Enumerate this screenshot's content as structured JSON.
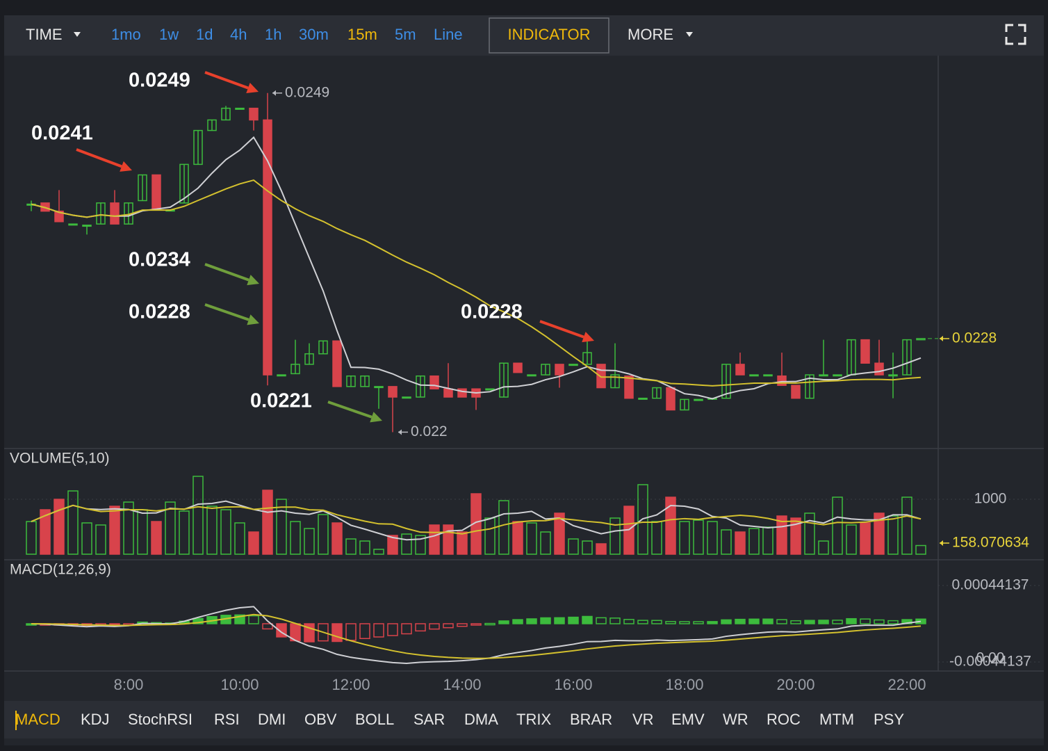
{
  "toolbar": {
    "time": "TIME",
    "intervals": [
      {
        "label": "1mo",
        "color": "#3e8ee6"
      },
      {
        "label": "1w",
        "color": "#3e8ee6"
      },
      {
        "label": "1d",
        "color": "#3e8ee6"
      },
      {
        "label": "4h",
        "color": "#3e8ee6"
      },
      {
        "label": "1h",
        "color": "#3e8ee6"
      },
      {
        "label": "30m",
        "color": "#3e8ee6"
      },
      {
        "label": "15m",
        "color": "#f0b90b"
      },
      {
        "label": "5m",
        "color": "#3e8ee6"
      },
      {
        "label": "Line",
        "color": "#3e8ee6"
      }
    ],
    "indicator": "INDICATOR",
    "more": "MORE"
  },
  "chart": {
    "type": "candlestick",
    "ylim": [
      0.02186,
      0.02522
    ],
    "up_color": "#3dbb3d",
    "down_color": "#d8434b",
    "candles": {
      "open": [
        0.02395,
        0.02396,
        0.02389,
        0.02378,
        0.02377,
        0.02378,
        0.02396,
        0.02378,
        0.02398,
        0.0242,
        0.0239,
        0.02396,
        0.02429,
        0.02458,
        0.02467,
        0.02477,
        0.02477,
        0.02467,
        0.02249,
        0.0225,
        0.02258,
        0.02267,
        0.02278,
        0.02239,
        0.02239,
        0.02239,
        0.02239,
        0.0223,
        0.0223,
        0.02248,
        0.02237,
        0.02237,
        0.02237,
        0.02237,
        0.0223,
        0.02259,
        0.02249,
        0.02249,
        0.02258,
        0.02258,
        0.02258,
        0.02258,
        0.02238,
        0.02248,
        0.02229,
        0.02229,
        0.02238,
        0.02219,
        0.02228,
        0.02229,
        0.02229,
        0.02258,
        0.02249,
        0.02249,
        0.02248,
        0.0224,
        0.02229,
        0.02249,
        0.02249,
        0.02249,
        0.02279,
        0.02259,
        0.02249,
        0.02249,
        0.02279
      ],
      "high": [
        0.02398,
        0.02396,
        0.02407,
        0.02378,
        0.02377,
        0.02396,
        0.02407,
        0.02396,
        0.0242,
        0.0242,
        0.0239,
        0.02429,
        0.02458,
        0.02467,
        0.02479,
        0.02477,
        0.02477,
        0.0249,
        0.02249,
        0.02279,
        0.02276,
        0.02278,
        0.02278,
        0.02248,
        0.02248,
        0.02239,
        0.02239,
        0.0223,
        0.02248,
        0.02248,
        0.02259,
        0.02237,
        0.02237,
        0.02237,
        0.02259,
        0.02259,
        0.02249,
        0.02258,
        0.02258,
        0.02258,
        0.02279,
        0.02258,
        0.02276,
        0.02248,
        0.02229,
        0.02238,
        0.02238,
        0.02228,
        0.02228,
        0.02229,
        0.02258,
        0.02268,
        0.02249,
        0.02249,
        0.02268,
        0.0224,
        0.02249,
        0.02279,
        0.02249,
        0.02279,
        0.02279,
        0.02279,
        0.02268,
        0.02279,
        0.02279
      ],
      "low": [
        0.02389,
        0.02389,
        0.0238,
        0.02378,
        0.02369,
        0.02378,
        0.02378,
        0.02378,
        0.02398,
        0.0239,
        0.0239,
        0.02396,
        0.02429,
        0.02458,
        0.02467,
        0.02477,
        0.02458,
        0.0224,
        0.02249,
        0.0225,
        0.02258,
        0.02267,
        0.02239,
        0.02239,
        0.02239,
        0.0222,
        0.022,
        0.0223,
        0.0223,
        0.02237,
        0.0223,
        0.0223,
        0.02219,
        0.02237,
        0.0223,
        0.02251,
        0.02249,
        0.02249,
        0.02238,
        0.02258,
        0.02258,
        0.02238,
        0.02238,
        0.02229,
        0.02229,
        0.02229,
        0.02219,
        0.02219,
        0.02228,
        0.02229,
        0.02229,
        0.02249,
        0.02249,
        0.02249,
        0.0224,
        0.02229,
        0.02229,
        0.02249,
        0.02249,
        0.02249,
        0.02259,
        0.02249,
        0.02229,
        0.02249,
        0.02279
      ],
      "close": [
        0.02395,
        0.02389,
        0.0238,
        0.02378,
        0.02377,
        0.02396,
        0.02378,
        0.02396,
        0.0242,
        0.0239,
        0.0239,
        0.02429,
        0.02458,
        0.02467,
        0.02477,
        0.02477,
        0.02467,
        0.02249,
        0.02249,
        0.02258,
        0.02267,
        0.02278,
        0.02239,
        0.02248,
        0.02248,
        0.02239,
        0.0223,
        0.0223,
        0.02248,
        0.02237,
        0.0223,
        0.0223,
        0.0223,
        0.02237,
        0.02259,
        0.02251,
        0.02249,
        0.02258,
        0.02249,
        0.02258,
        0.02268,
        0.02238,
        0.02249,
        0.02229,
        0.02229,
        0.02238,
        0.02219,
        0.02228,
        0.02228,
        0.02229,
        0.02258,
        0.02249,
        0.02249,
        0.02249,
        0.0224,
        0.02229,
        0.02249,
        0.02249,
        0.02249,
        0.02279,
        0.02259,
        0.02249,
        0.02249,
        0.02279,
        0.0228
      ],
      "volume": [
        595,
        810,
        1000,
        1152,
        570,
        532,
        873,
        949,
        810,
        595,
        949,
        785,
        1418,
        873,
        810,
        570,
        405,
        1165,
        1000,
        595,
        468,
        722,
        570,
        278,
        240,
        89,
        342,
        367,
        342,
        532,
        532,
        405,
        1101,
        658,
        975,
        595,
        570,
        405,
        747,
        278,
        240,
        190,
        658,
        873,
        1266,
        595,
        1038,
        595,
        620,
        595,
        443,
        405,
        468,
        494,
        696,
        658,
        747,
        240,
        1038,
        532,
        570,
        747,
        696,
        1038,
        158.070634
      ]
    },
    "annotations": [
      {
        "text": "0.0249",
        "color": "#e8412c"
      },
      {
        "text": "0.0241",
        "color": "#e8412c"
      },
      {
        "text": "0.0234",
        "color": "#6f9e3c"
      },
      {
        "text": "0.0228",
        "color": "#6f9e3c"
      },
      {
        "text": "0.0221",
        "color": "#6f9e3c"
      },
      {
        "text": "0.0228",
        "color": "#e8412c"
      }
    ]
  },
  "volume": {
    "title": "VOLUME(5,10)",
    "ylim": [
      0,
      1861
    ],
    "yticks": [
      1000
    ]
  },
  "macd": {
    "title": "MACD(12,26,9)",
    "ylim": [
      -0.000546,
      0.000698
    ],
    "yticks": [
      0.00044137,
      -0.00044137
    ],
    "overlay_label": "0.00"
  },
  "time_axis": [
    "8:00",
    "10:00",
    "12:00",
    "14:00",
    "16:00",
    "18:00",
    "20:00",
    "22:00"
  ],
  "indicator_tabs": [
    "MACD",
    "KDJ",
    "StochRSI",
    "RSI",
    "DMI",
    "OBV",
    "BOLL",
    "SAR",
    "DMA",
    "TRIX",
    "BRAR",
    "VR",
    "EMV",
    "WR",
    "ROC",
    "MTM",
    "PSY"
  ]
}
